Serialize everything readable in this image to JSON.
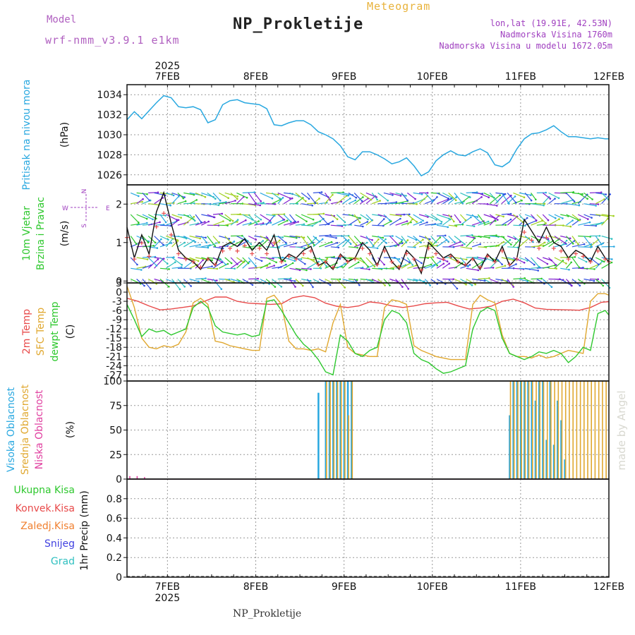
{
  "header": {
    "model_label": "Model",
    "model_value": "wrf-nmm_v3.9.1 e1km",
    "title": "NP_Prokletije",
    "subtitle": "Meteogram",
    "location_lines": [
      "lon,lat (19.91E, 42.53N)",
      "Nadmorska Visina 1760m",
      "Nadmorska Visina u modelu 1672.05m"
    ]
  },
  "footer": {
    "station": "NP_Prokletije"
  },
  "credit": "made by Angel",
  "time_axis": {
    "year_label": "2025",
    "day_labels": [
      "7FEB",
      "8FEB",
      "9FEB",
      "10FEB",
      "11FEB",
      "12FEB"
    ],
    "x_range_hours": [
      -11,
      120
    ]
  },
  "colors": {
    "pressure": "#29a8e0",
    "temp2m": "#e84a4a",
    "sfc": "#e0a830",
    "dewpt": "#2ec82e",
    "cloud_high": "#29a8e0",
    "cloud_mid": "#e0a830",
    "cloud_low": "#e040a0",
    "rain_total": "#2ec82e",
    "rain_conv": "#e84a4a",
    "freezing": "#f08030",
    "snow": "#4040e0",
    "hail": "#30c0c0",
    "wind": "#a040c0"
  },
  "chart_data": [
    {
      "type": "line",
      "panel": "pressure",
      "ylabel_lines": [
        "Pritisak na nivou mora"
      ],
      "unit": "(hPa)",
      "ylim": [
        1025,
        1035
      ],
      "yticks": [
        1026,
        1028,
        1030,
        1032,
        1034
      ],
      "series": [
        {
          "x": [
            -11,
            -9,
            -7,
            -5,
            -3,
            -1,
            1,
            3,
            5,
            7,
            9,
            11,
            13,
            15,
            17,
            19,
            21,
            23,
            25,
            27,
            29,
            31,
            33,
            35,
            37,
            39,
            41,
            43,
            45,
            47,
            49,
            51,
            53,
            55,
            57,
            59,
            61,
            63,
            65,
            67,
            69,
            71,
            73,
            75,
            77,
            79,
            81,
            83,
            85,
            87,
            89,
            91,
            93,
            95,
            97,
            99,
            101,
            103,
            105,
            107,
            109,
            111,
            113,
            115,
            117,
            119,
            120
          ],
          "values": [
            1031.5,
            1032.3,
            1031.6,
            1032.4,
            1033.2,
            1033.9,
            1033.7,
            1032.8,
            1032.7,
            1032.8,
            1032.5,
            1031.2,
            1031.5,
            1033.0,
            1033.4,
            1033.5,
            1033.2,
            1033.1,
            1033.0,
            1032.6,
            1031.0,
            1030.9,
            1031.2,
            1031.4,
            1031.4,
            1031.0,
            1030.3,
            1030.0,
            1029.6,
            1028.9,
            1027.8,
            1027.5,
            1028.3,
            1028.3,
            1028.0,
            1027.6,
            1027.1,
            1027.3,
            1027.7,
            1026.9,
            1025.9,
            1026.3,
            1027.4,
            1028.0,
            1028.4,
            1028.0,
            1027.9,
            1028.3,
            1028.6,
            1028.2,
            1027.0,
            1026.8,
            1027.3,
            1028.6,
            1029.6,
            1030.1,
            1030.2,
            1030.5,
            1030.9,
            1030.3,
            1029.8,
            1029.8,
            1029.7,
            1029.6,
            1029.7,
            1029.6,
            1029.6
          ],
          "note": ""
        }
      ]
    },
    {
      "type": "line",
      "panel": "wind",
      "ylabel_lines": [
        "10m Vjetar",
        "Brzina i Pravac"
      ],
      "unit": "(m/s)",
      "compass": {
        "n": "N",
        "s": "S",
        "w": "W",
        "e": "E"
      },
      "ylim": [
        -0.05,
        2.5
      ],
      "yticks": [
        0,
        1,
        2
      ],
      "series": [
        {
          "name": "",
          "x": [
            -11,
            -9,
            -7,
            -5,
            -3,
            -1,
            1,
            3,
            5,
            7,
            9,
            11,
            13,
            15,
            17,
            19,
            21,
            23,
            25,
            27,
            29,
            31,
            33,
            35,
            37,
            39,
            41,
            43,
            45,
            47,
            49,
            51,
            53,
            55,
            57,
            59,
            61,
            63,
            65,
            67,
            69,
            71,
            73,
            75,
            77,
            79,
            81,
            83,
            85,
            87,
            89,
            91,
            93,
            95,
            97,
            99,
            101,
            103,
            105,
            107,
            109,
            111,
            113,
            115,
            117,
            119,
            120
          ],
          "values": [
            1.4,
            0.6,
            1.2,
            0.7,
            1.8,
            2.3,
            1.5,
            0.8,
            0.6,
            0.5,
            0.3,
            0.6,
            0.4,
            0.9,
            1.0,
            0.9,
            1.1,
            0.8,
            1.0,
            0.8,
            1.2,
            0.5,
            0.7,
            0.6,
            0.8,
            0.9,
            0.4,
            0.5,
            0.3,
            0.7,
            0.5,
            0.6,
            1.0,
            0.8,
            0.4,
            0.9,
            0.5,
            0.3,
            0.8,
            0.6,
            0.2,
            1.0,
            0.8,
            0.6,
            0.7,
            0.5,
            0.4,
            0.6,
            0.3,
            0.7,
            0.5,
            0.9,
            0.4,
            0.6,
            1.6,
            1.3,
            1.0,
            1.4,
            1.0,
            0.9,
            0.6,
            0.8,
            0.7,
            0.5,
            0.9,
            0.6,
            0.5
          ]
        }
      ]
    },
    {
      "type": "line",
      "panel": "temperature",
      "ylabel_lines": [
        "2m Temp",
        "SFC Temp",
        "dewpt Temp"
      ],
      "unit": "(C)",
      "ylim": [
        -29,
        3
      ],
      "yticks": [
        3,
        0,
        -3,
        -6,
        -9,
        -12,
        -15,
        -18,
        -21,
        -24,
        -27
      ],
      "series": [
        {
          "name": "2m Temp",
          "x": [
            -11,
            -8,
            -5,
            -2,
            1,
            4,
            7,
            10,
            13,
            16,
            19,
            22,
            25,
            28,
            31,
            34,
            37,
            40,
            43,
            46,
            49,
            52,
            55,
            58,
            61,
            64,
            67,
            70,
            73,
            76,
            79,
            82,
            85,
            88,
            91,
            94,
            97,
            100,
            103,
            106,
            109,
            112,
            115,
            118,
            120
          ],
          "values": [
            -2,
            -3,
            -4.5,
            -5.8,
            -5.5,
            -5,
            -4.5,
            -3,
            -1.6,
            -1.6,
            -3,
            -3.6,
            -3.8,
            -4,
            -3.8,
            -1.8,
            -1.2,
            -1.8,
            -3.6,
            -4.6,
            -5,
            -4.5,
            -3.2,
            -3.6,
            -4.5,
            -5,
            -4.5,
            -3.8,
            -3.5,
            -3.3,
            -4.5,
            -5.5,
            -5.2,
            -4.6,
            -3,
            -2.3,
            -3.5,
            -5.2,
            -5.6,
            -5.7,
            -5.8,
            -5.9,
            -5,
            -3.3,
            -3.1
          ]
        },
        {
          "name": "SFC Temp",
          "x": [
            -11,
            -9,
            -7,
            -5,
            -3,
            -1,
            1,
            3,
            5,
            7,
            9,
            11,
            13,
            15,
            17,
            19,
            21,
            23,
            25,
            27,
            29,
            31,
            33,
            35,
            37,
            39,
            41,
            43,
            45,
            47,
            49,
            51,
            53,
            55,
            57,
            59,
            61,
            63,
            65,
            67,
            69,
            71,
            73,
            75,
            77,
            79,
            81,
            83,
            85,
            87,
            89,
            91,
            93,
            95,
            97,
            99,
            101,
            103,
            105,
            107,
            109,
            111,
            113,
            115,
            117,
            119,
            120
          ],
          "values": [
            2.0,
            -5,
            -15,
            -18,
            -18.5,
            -17.5,
            -18,
            -17,
            -13,
            -3.5,
            -2,
            -4,
            -16,
            -16.5,
            -17.5,
            -18,
            -18.5,
            -19,
            -19,
            -2,
            -1,
            -4,
            -16,
            -18.5,
            -18.5,
            -19,
            -18.5,
            -19.5,
            -10,
            -4,
            -18,
            -20,
            -20.5,
            -21,
            -21,
            -5,
            -2.5,
            -3,
            -4,
            -17.5,
            -19,
            -20,
            -21,
            -21.5,
            -22,
            -22,
            -22,
            -4,
            -1,
            -2.5,
            -3.5,
            -14,
            -20,
            -21,
            -21,
            -21.5,
            -20.5,
            -21.5,
            -21,
            -20,
            -19,
            -19.5,
            -20,
            -3,
            -0.5,
            -0.5,
            -1
          ]
        },
        {
          "name": "dewpt Temp",
          "x": [
            -11,
            -9,
            -7,
            -5,
            -3,
            -1,
            1,
            3,
            5,
            7,
            9,
            11,
            13,
            15,
            17,
            19,
            21,
            23,
            25,
            27,
            29,
            31,
            33,
            35,
            37,
            39,
            41,
            43,
            45,
            47,
            49,
            51,
            53,
            55,
            57,
            59,
            61,
            63,
            65,
            67,
            69,
            71,
            73,
            75,
            77,
            79,
            81,
            83,
            85,
            87,
            89,
            91,
            93,
            95,
            97,
            99,
            101,
            103,
            105,
            107,
            109,
            111,
            113,
            115,
            117,
            119,
            120
          ],
          "values": [
            -4,
            -9,
            -14.5,
            -12,
            -13,
            -12.5,
            -14,
            -13,
            -12,
            -5,
            -3,
            -5,
            -11,
            -13,
            -13.5,
            -14,
            -13.5,
            -14.5,
            -14,
            -3,
            -2.5,
            -6,
            -10,
            -14,
            -17,
            -19,
            -22,
            -26,
            -27,
            -14,
            -16,
            -20,
            -21,
            -19,
            -18,
            -9,
            -6,
            -7,
            -10,
            -20,
            -22,
            -23,
            -25,
            -26.5,
            -26,
            -25,
            -24,
            -12,
            -6.5,
            -5,
            -6,
            -15,
            -20,
            -21,
            -22,
            -21,
            -19.5,
            -20,
            -19,
            -20,
            -23,
            -21,
            -18,
            -19,
            -7,
            -6,
            -7.5
          ]
        }
      ]
    },
    {
      "type": "bar",
      "panel": "clouds",
      "ylabel_lines": [
        "Visoka Oblacnost",
        "Srednja Oblacnost",
        "Niska Oblacnost"
      ],
      "unit": "(%)",
      "ylim": [
        0,
        100
      ],
      "yticks": [
        0,
        25,
        50,
        75,
        100
      ],
      "series": [
        {
          "name": "Visoka Oblacnost",
          "x": [
            41,
            43,
            44,
            45,
            46,
            47,
            48,
            49,
            50,
            93,
            94,
            95,
            96,
            97,
            98,
            99,
            100,
            101,
            102,
            103,
            104,
            105,
            106,
            107,
            108
          ],
          "values": [
            88,
            100,
            100,
            100,
            100,
            100,
            100,
            100,
            100,
            65,
            100,
            100,
            100,
            100,
            100,
            100,
            80,
            100,
            100,
            40,
            100,
            35,
            80,
            60,
            20
          ]
        },
        {
          "name": "Srednja Oblacnost",
          "x": [
            43,
            44,
            45,
            46,
            47,
            48,
            49,
            50,
            93,
            94,
            95,
            96,
            97,
            98,
            99,
            100,
            101,
            102,
            103,
            104,
            105,
            106,
            107,
            108,
            109,
            110,
            111,
            112,
            113,
            114,
            115,
            116,
            117,
            118,
            119
          ],
          "values": [
            100,
            100,
            100,
            100,
            100,
            100,
            65,
            100,
            100,
            100,
            100,
            100,
            100,
            100,
            100,
            100,
            100,
            100,
            100,
            100,
            100,
            100,
            100,
            100,
            100,
            100,
            100,
            100,
            100,
            100,
            100,
            100,
            100,
            100,
            100
          ]
        },
        {
          "name": "Niska Oblacnost",
          "x": [
            -10,
            -8,
            -6
          ],
          "values": [
            3,
            3,
            2
          ]
        }
      ]
    },
    {
      "type": "bar",
      "panel": "precipitation",
      "ylabel_lines": [
        "Ukupna Kisa",
        "Konvek.Kisa",
        "Zaledj.Kisa",
        "Snijeg",
        "Grad"
      ],
      "unit": "1hr Precip (mm)",
      "ylim": [
        0,
        1
      ],
      "yticks": [
        0,
        0.2,
        0.4,
        0.6,
        0.8
      ],
      "series": [
        {
          "name": "Ukupna Kisa",
          "values": []
        },
        {
          "name": "Konvek.Kisa",
          "values": []
        },
        {
          "name": "Zaledj.Kisa",
          "values": []
        },
        {
          "name": "Snijeg",
          "values": []
        },
        {
          "name": "Grad",
          "values": []
        }
      ]
    }
  ]
}
